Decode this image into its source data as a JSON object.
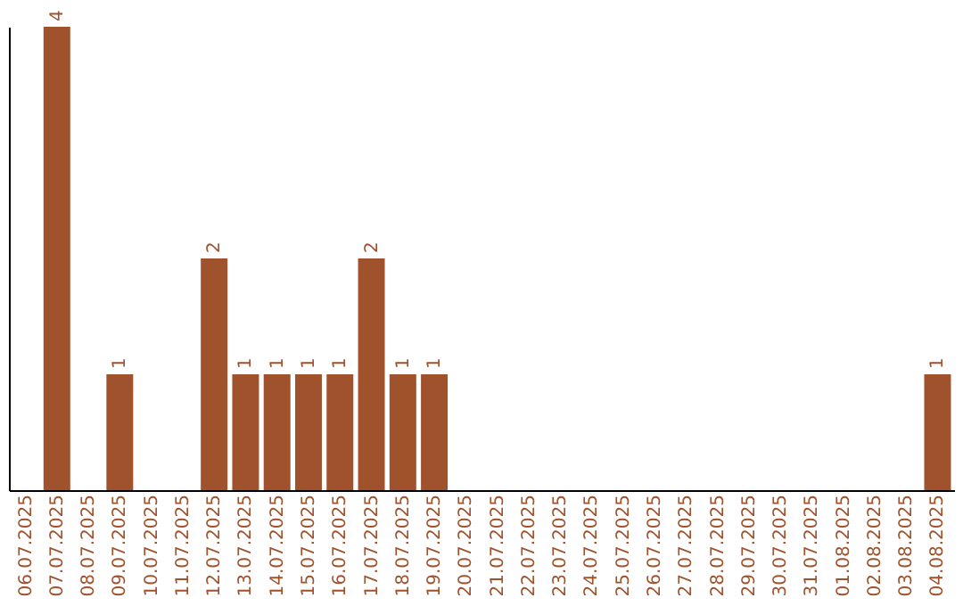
{
  "chart_data": {
    "type": "bar",
    "color": "#a0522d",
    "categories": [
      "06.07.2025",
      "07.07.2025",
      "08.07.2025",
      "09.07.2025",
      "10.07.2025",
      "11.07.2025",
      "12.07.2025",
      "13.07.2025",
      "14.07.2025",
      "15.07.2025",
      "16.07.2025",
      "17.07.2025",
      "18.07.2025",
      "19.07.2025",
      "20.07.2025",
      "21.07.2025",
      "22.07.2025",
      "23.07.2025",
      "24.07.2025",
      "25.07.2025",
      "26.07.2025",
      "27.07.2025",
      "28.07.2025",
      "29.07.2025",
      "30.07.2025",
      "31.07.2025",
      "01.08.2025",
      "02.08.2025",
      "03.08.2025",
      "04.08.2025"
    ],
    "values": [
      0,
      4,
      0,
      1,
      0,
      0,
      2,
      1,
      1,
      1,
      1,
      2,
      1,
      1,
      0,
      0,
      0,
      0,
      0,
      0,
      0,
      0,
      0,
      0,
      0,
      0,
      0,
      0,
      0,
      1
    ],
    "value_labels": [
      null,
      "4",
      null,
      "1",
      null,
      null,
      "2",
      "1",
      "1",
      "1",
      "1",
      "2",
      "1",
      "1",
      null,
      null,
      null,
      null,
      null,
      null,
      null,
      null,
      null,
      null,
      null,
      null,
      null,
      null,
      null,
      "1"
    ],
    "grid": false,
    "tick_labels": "x"
  }
}
